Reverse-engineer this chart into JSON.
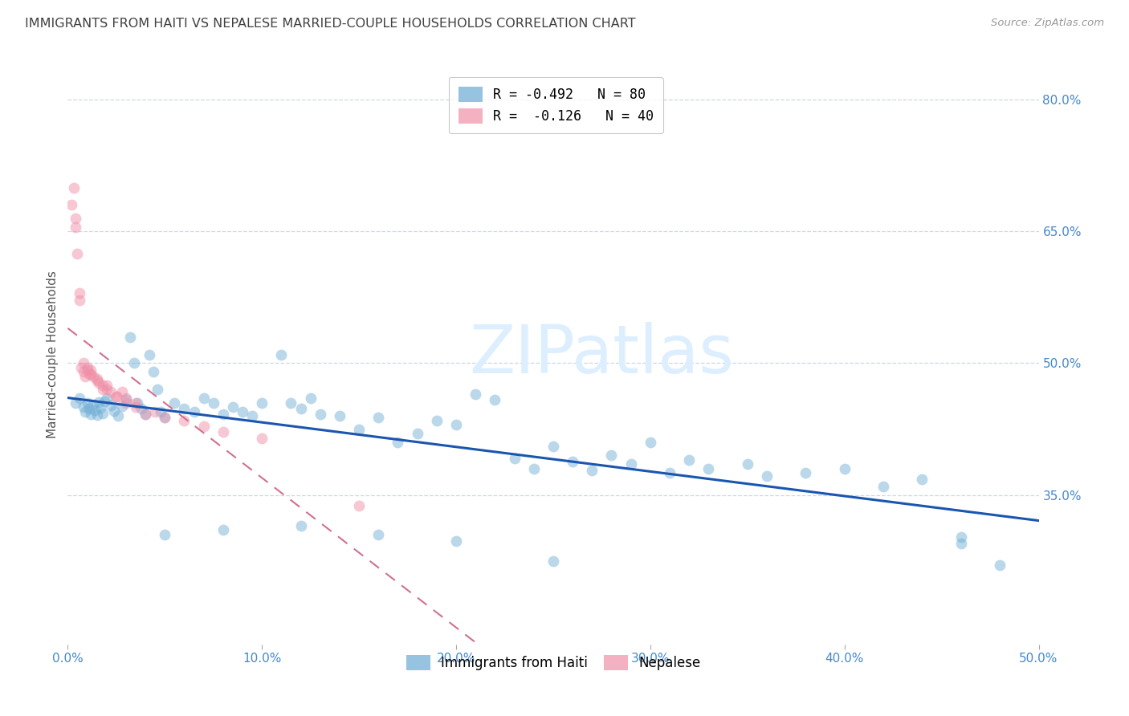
{
  "title": "IMMIGRANTS FROM HAITI VS NEPALESE MARRIED-COUPLE HOUSEHOLDS CORRELATION CHART",
  "source": "Source: ZipAtlas.com",
  "ylabel": "Married-couple Households",
  "xmin": 0.0,
  "xmax": 0.5,
  "ymin": 0.18,
  "ymax": 0.84,
  "x_ticks": [
    0.0,
    0.1,
    0.2,
    0.3,
    0.4,
    0.5
  ],
  "x_tick_labels": [
    "0.0%",
    "10.0%",
    "20.0%",
    "30.0%",
    "40.0%",
    "50.0%"
  ],
  "y_ticks_right": [
    0.35,
    0.5,
    0.65,
    0.8
  ],
  "y_tick_labels_right": [
    "35.0%",
    "50.0%",
    "65.0%",
    "80.0%"
  ],
  "legend_upper": [
    {
      "label": "R = -0.492   N = 80",
      "color": "#7ab3e0"
    },
    {
      "label": "R =  -0.126   N = 40",
      "color": "#f090a8"
    }
  ],
  "legend_bottom": [
    {
      "label": "Immigrants from Haiti",
      "color": "#7ab3e0"
    },
    {
      "label": "Nepalese",
      "color": "#f090a8"
    }
  ],
  "watermark": "ZIPatlas",
  "watermark_color": "#ddeeff",
  "blue_color": "#6aaad4",
  "pink_color": "#f090a8",
  "blue_line_color": "#1a56b0",
  "pink_line_color": "#d07090",
  "background_color": "#ffffff",
  "grid_color": "#c8d8e8",
  "title_color": "#404040",
  "right_axis_color": "#4488cc",
  "bottom_axis_color": "#4488cc",
  "haiti_x": [
    0.004,
    0.006,
    0.008,
    0.009,
    0.01,
    0.011,
    0.012,
    0.013,
    0.014,
    0.015,
    0.016,
    0.017,
    0.018,
    0.019,
    0.02,
    0.022,
    0.024,
    0.026,
    0.028,
    0.03,
    0.032,
    0.034,
    0.036,
    0.038,
    0.04,
    0.042,
    0.044,
    0.046,
    0.048,
    0.05,
    0.055,
    0.06,
    0.065,
    0.07,
    0.075,
    0.08,
    0.085,
    0.09,
    0.095,
    0.1,
    0.11,
    0.115,
    0.12,
    0.125,
    0.13,
    0.14,
    0.15,
    0.16,
    0.17,
    0.18,
    0.19,
    0.2,
    0.21,
    0.22,
    0.23,
    0.24,
    0.25,
    0.26,
    0.27,
    0.28,
    0.29,
    0.3,
    0.31,
    0.32,
    0.33,
    0.35,
    0.36,
    0.38,
    0.4,
    0.42,
    0.44,
    0.46,
    0.05,
    0.08,
    0.12,
    0.16,
    0.2,
    0.25,
    0.46,
    0.48
  ],
  "haiti_y": [
    0.455,
    0.46,
    0.45,
    0.445,
    0.455,
    0.448,
    0.442,
    0.453,
    0.447,
    0.441,
    0.456,
    0.449,
    0.443,
    0.457,
    0.46,
    0.452,
    0.446,
    0.44,
    0.451,
    0.458,
    0.53,
    0.5,
    0.455,
    0.448,
    0.442,
    0.51,
    0.49,
    0.47,
    0.445,
    0.438,
    0.455,
    0.448,
    0.445,
    0.46,
    0.455,
    0.442,
    0.45,
    0.445,
    0.44,
    0.455,
    0.51,
    0.455,
    0.448,
    0.46,
    0.442,
    0.44,
    0.425,
    0.438,
    0.41,
    0.42,
    0.435,
    0.43,
    0.465,
    0.458,
    0.392,
    0.38,
    0.405,
    0.388,
    0.378,
    0.395,
    0.385,
    0.41,
    0.375,
    0.39,
    0.38,
    0.385,
    0.372,
    0.375,
    0.38,
    0.36,
    0.368,
    0.295,
    0.305,
    0.31,
    0.315,
    0.305,
    0.298,
    0.275,
    0.302,
    0.27
  ],
  "nepal_x": [
    0.003,
    0.004,
    0.005,
    0.006,
    0.007,
    0.008,
    0.009,
    0.01,
    0.011,
    0.012,
    0.013,
    0.015,
    0.016,
    0.018,
    0.02,
    0.022,
    0.025,
    0.028,
    0.03,
    0.035,
    0.002,
    0.004,
    0.006,
    0.008,
    0.01,
    0.012,
    0.015,
    0.018,
    0.02,
    0.025,
    0.03,
    0.035,
    0.04,
    0.045,
    0.05,
    0.06,
    0.07,
    0.08,
    0.1,
    0.15
  ],
  "nepal_y": [
    0.7,
    0.665,
    0.625,
    0.58,
    0.495,
    0.49,
    0.485,
    0.495,
    0.488,
    0.492,
    0.485,
    0.482,
    0.478,
    0.47,
    0.475,
    0.468,
    0.462,
    0.468,
    0.46,
    0.455,
    0.68,
    0.655,
    0.572,
    0.5,
    0.492,
    0.488,
    0.48,
    0.475,
    0.47,
    0.462,
    0.455,
    0.45,
    0.442,
    0.445,
    0.438,
    0.435,
    0.428,
    0.422,
    0.415,
    0.338
  ]
}
